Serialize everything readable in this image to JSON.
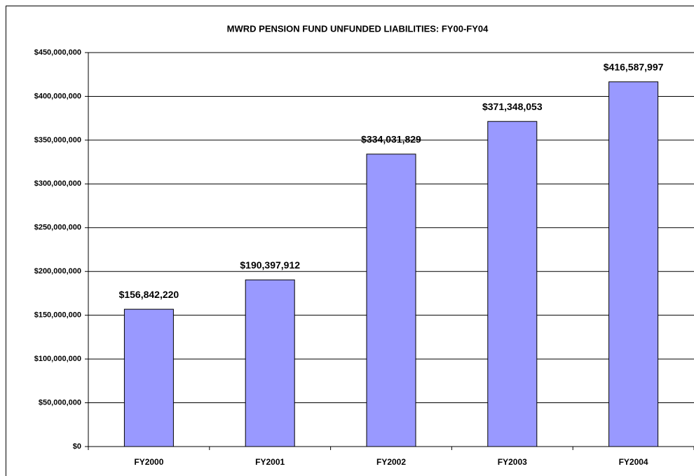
{
  "chart_data": {
    "type": "bar",
    "title": "MWRD PENSION FUND UNFUNDED LIABILITIES: FY00-FY04",
    "categories": [
      "FY2000",
      "FY2001",
      "FY2002",
      "FY2003",
      "FY2004"
    ],
    "values": [
      156842220,
      190397912,
      334031829,
      371348053,
      416587997
    ],
    "value_labels": [
      "$156,842,220",
      "$190,397,912",
      "$334,031,829",
      "$371,348,053",
      "$416,587,997"
    ],
    "color": "#9999ff",
    "ylim": [
      0,
      450000000
    ],
    "yticks": [
      {
        "value": 0,
        "label": "$0"
      },
      {
        "value": 50000000,
        "label": "$50,000,000"
      },
      {
        "value": 100000000,
        "label": "$100,000,000"
      },
      {
        "value": 150000000,
        "label": "$150,000,000"
      },
      {
        "value": 200000000,
        "label": "$200,000,000"
      },
      {
        "value": 250000000,
        "label": "$250,000,000"
      },
      {
        "value": 300000000,
        "label": "$300,000,000"
      },
      {
        "value": 350000000,
        "label": "$350,000,000"
      },
      {
        "value": 400000000,
        "label": "$400,000,000"
      },
      {
        "value": 450000000,
        "label": "$450,000,000"
      }
    ],
    "grid": true
  }
}
